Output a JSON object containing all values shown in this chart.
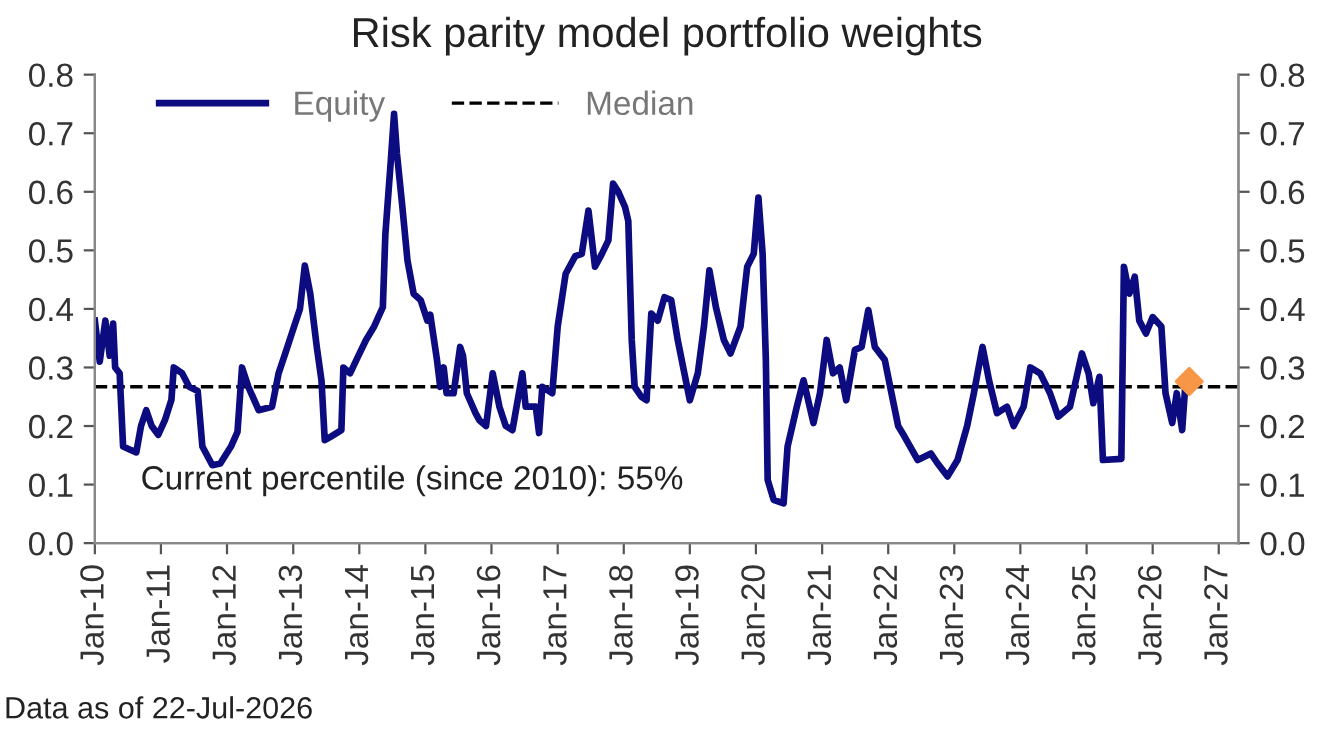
{
  "chart_data": {
    "type": "line",
    "title": "Risk parity model portfolio weights",
    "series": [
      {
        "name": "Equity",
        "color": "#0c0c80",
        "x": [
          "2010-01-01",
          "2010-01-28",
          "2010-02-28",
          "2010-03-24",
          "2010-04-12",
          "2010-04-23",
          "2010-05-18",
          "2010-06-06",
          "2010-07-12",
          "2010-08-18",
          "2010-09-13",
          "2010-10-12",
          "2010-11-11",
          "2010-12-17",
          "2011-01-23",
          "2011-02-28",
          "2011-03-13",
          "2011-04-28",
          "2011-06-06",
          "2011-07-23",
          "2011-08-18",
          "2011-10-12",
          "2011-11-25",
          "2012-01-23",
          "2012-02-28",
          "2012-03-24",
          "2012-04-28",
          "2012-06-24",
          "2012-09-06",
          "2012-10-12",
          "2012-11-18",
          "2012-12-24",
          "2013-02-07",
          "2013-03-06",
          "2013-04-05",
          "2013-05-11",
          "2013-06-06",
          "2013-06-24",
          "2013-07-28",
          "2013-09-24",
          "2013-10-05",
          "2013-11-11",
          "2013-12-24",
          "2014-02-07",
          "2014-03-24",
          "2014-05-11",
          "2014-05-25",
          "2014-06-24",
          "2014-07-12",
          "2014-07-28",
          "2014-08-25",
          "2014-09-24",
          "2014-10-28",
          "2014-12-06",
          "2015-01-12",
          "2015-01-28",
          "2015-03-06",
          "2015-03-24",
          "2015-04-12",
          "2015-04-28",
          "2015-06-06",
          "2015-07-12",
          "2015-07-28",
          "2015-08-18",
          "2015-10-05",
          "2015-10-26",
          "2015-12-02",
          "2016-01-08",
          "2016-02-14",
          "2016-03-20",
          "2016-04-26",
          "2016-06-20",
          "2016-07-08",
          "2016-09-02",
          "2016-09-20",
          "2016-10-08",
          "2016-12-02",
          "2017-01-01",
          "2017-02-14",
          "2017-04-08",
          "2017-05-14",
          "2017-06-20",
          "2017-07-26",
          "2017-09-02",
          "2017-10-08",
          "2017-11-03",
          "2017-12-02",
          "2018-01-08",
          "2018-01-26",
          "2018-02-14",
          "2018-03-02",
          "2018-04-08",
          "2018-05-07",
          "2018-06-02",
          "2018-07-08",
          "2018-08-14",
          "2018-09-20",
          "2018-10-26",
          "2018-12-02",
          "2019-01-01",
          "2019-02-14",
          "2019-03-20",
          "2019-04-19",
          "2019-05-25",
          "2019-07-08",
          "2019-08-14",
          "2019-10-08",
          "2019-11-14",
          "2019-12-20",
          "2020-01-15",
          "2020-02-07",
          "2020-02-25",
          "2020-03-06",
          "2020-04-08",
          "2020-06-02",
          "2020-06-24",
          "2020-08-14",
          "2020-09-20",
          "2020-11-14",
          "2020-12-20",
          "2021-01-26",
          "2021-03-02",
          "2021-04-08",
          "2021-05-14",
          "2021-07-01",
          "2021-08-07",
          "2021-09-13",
          "2021-10-19",
          "2021-12-13",
          "2022-01-19",
          "2022-02-25",
          "2022-04-01",
          "2022-06-13",
          "2022-08-25",
          "2022-10-01",
          "2022-11-25",
          "2023-01-19",
          "2023-03-13",
          "2023-04-19",
          "2023-06-06",
          "2023-07-12",
          "2023-08-25",
          "2023-10-19",
          "2023-11-25",
          "2024-01-19",
          "2024-02-25",
          "2024-04-19",
          "2024-06-13",
          "2024-07-28",
          "2024-10-01",
          "2024-12-06",
          "2025-01-12",
          "2025-02-07",
          "2025-03-13",
          "2025-04-01",
          "2025-07-12",
          "2025-07-26",
          "2025-08-25",
          "2025-09-24",
          "2025-10-19",
          "2025-11-25",
          "2026-01-01",
          "2026-02-18",
          "2026-03-13",
          "2026-04-19",
          "2026-05-14",
          "2026-06-13",
          "2026-07-01"
        ],
        "values": [
          0.38,
          0.31,
          0.38,
          0.32,
          0.375,
          0.3,
          0.29,
          0.165,
          0.16,
          0.155,
          0.2,
          0.227,
          0.2,
          0.185,
          0.21,
          0.245,
          0.3,
          0.29,
          0.267,
          0.26,
          0.165,
          0.133,
          0.136,
          0.165,
          0.19,
          0.3,
          0.267,
          0.227,
          0.233,
          0.29,
          0.324,
          0.358,
          0.4,
          0.474,
          0.426,
          0.335,
          0.278,
          0.176,
          0.182,
          0.193,
          0.3,
          0.29,
          0.318,
          0.347,
          0.37,
          0.403,
          0.528,
          0.653,
          0.733,
          0.665,
          0.58,
          0.483,
          0.426,
          0.415,
          0.38,
          0.39,
          0.313,
          0.267,
          0.3,
          0.256,
          0.256,
          0.335,
          0.32,
          0.256,
          0.222,
          0.21,
          0.2,
          0.29,
          0.233,
          0.2,
          0.193,
          0.29,
          0.233,
          0.233,
          0.188,
          0.267,
          0.256,
          0.37,
          0.46,
          0.49,
          0.494,
          0.568,
          0.472,
          0.494,
          0.517,
          0.614,
          0.6,
          0.574,
          0.55,
          0.347,
          0.267,
          0.25,
          0.244,
          0.392,
          0.38,
          0.42,
          0.415,
          0.347,
          0.29,
          0.244,
          0.29,
          0.37,
          0.466,
          0.403,
          0.347,
          0.324,
          0.37,
          0.472,
          0.494,
          0.59,
          0.494,
          0.313,
          0.108,
          0.074,
          0.068,
          0.165,
          0.233,
          0.278,
          0.205,
          0.256,
          0.347,
          0.29,
          0.3,
          0.244,
          0.33,
          0.335,
          0.398,
          0.335,
          0.313,
          0.256,
          0.2,
          0.182,
          0.142,
          0.153,
          0.136,
          0.114,
          0.142,
          0.2,
          0.256,
          0.335,
          0.278,
          0.222,
          0.233,
          0.2,
          0.233,
          0.3,
          0.29,
          0.256,
          0.216,
          0.233,
          0.324,
          0.29,
          0.239,
          0.284,
          0.142,
          0.144,
          0.472,
          0.426,
          0.455,
          0.38,
          0.358,
          0.386,
          0.37,
          0.256,
          0.205,
          0.256,
          0.193,
          0.273
        ]
      },
      {
        "type": "scatter",
        "color": "#f79646",
        "marker": "diamond",
        "x": [
          "2026-07-22"
        ],
        "values": [
          0.276
        ]
      }
    ],
    "ref_lines": [
      {
        "axis": "y",
        "value": 0.267,
        "label": "Median",
        "color": "#000000",
        "line_style": "dashed"
      }
    ],
    "annotations": [
      "Current percentile (since 2010): 55%",
      "Data as of 22-Jul-2026"
    ],
    "xlim": [
      "2010-01-01",
      "2027-04-20"
    ],
    "xticks": [
      {
        "value": "2010-01-01",
        "label": "Jan-10"
      },
      {
        "value": "2011-01-01",
        "label": "Jan-11"
      },
      {
        "value": "2012-01-01",
        "label": "Jan-12"
      },
      {
        "value": "2013-01-01",
        "label": "Jan-13"
      },
      {
        "value": "2014-01-01",
        "label": "Jan-14"
      },
      {
        "value": "2015-01-01",
        "label": "Jan-15"
      },
      {
        "value": "2016-01-01",
        "label": "Jan-16"
      },
      {
        "value": "2017-01-01",
        "label": "Jan-17"
      },
      {
        "value": "2018-01-01",
        "label": "Jan-18"
      },
      {
        "value": "2019-01-01",
        "label": "Jan-19"
      },
      {
        "value": "2020-01-01",
        "label": "Jan-20"
      },
      {
        "value": "2021-01-01",
        "label": "Jan-21"
      },
      {
        "value": "2022-01-01",
        "label": "Jan-22"
      },
      {
        "value": "2023-01-01",
        "label": "Jan-23"
      },
      {
        "value": "2024-01-01",
        "label": "Jan-24"
      },
      {
        "value": "2025-01-01",
        "label": "Jan-25"
      },
      {
        "value": "2026-01-01",
        "label": "Jan-26"
      },
      {
        "value": "2027-01-01",
        "label": "Jan-27"
      }
    ],
    "ylim": [
      0,
      0.8
    ],
    "yticks": [
      {
        "value": 0,
        "label": "0.0"
      },
      {
        "value": 0.1,
        "label": "0.1"
      },
      {
        "value": 0.2,
        "label": "0.2"
      },
      {
        "value": 0.3,
        "label": "0.3"
      },
      {
        "value": 0.4,
        "label": "0.4"
      },
      {
        "value": 0.5,
        "label": "0.5"
      },
      {
        "value": 0.6,
        "label": "0.6"
      },
      {
        "value": 0.7,
        "label": "0.7"
      },
      {
        "value": 0.8,
        "label": "0.8"
      }
    ],
    "y2lim": [
      0,
      0.8
    ],
    "y2ticks": [
      {
        "value": 0,
        "label": "0.0"
      },
      {
        "value": 0.1,
        "label": "0.1"
      },
      {
        "value": 0.2,
        "label": "0.2"
      },
      {
        "value": 0.3,
        "label": "0.3"
      },
      {
        "value": 0.4,
        "label": "0.4"
      },
      {
        "value": 0.5,
        "label": "0.5"
      },
      {
        "value": 0.6,
        "label": "0.6"
      },
      {
        "value": 0.7,
        "label": "0.7"
      },
      {
        "value": 0.8,
        "label": "0.8"
      }
    ],
    "grid": false,
    "legend": "top left",
    "line_style": "solid"
  }
}
